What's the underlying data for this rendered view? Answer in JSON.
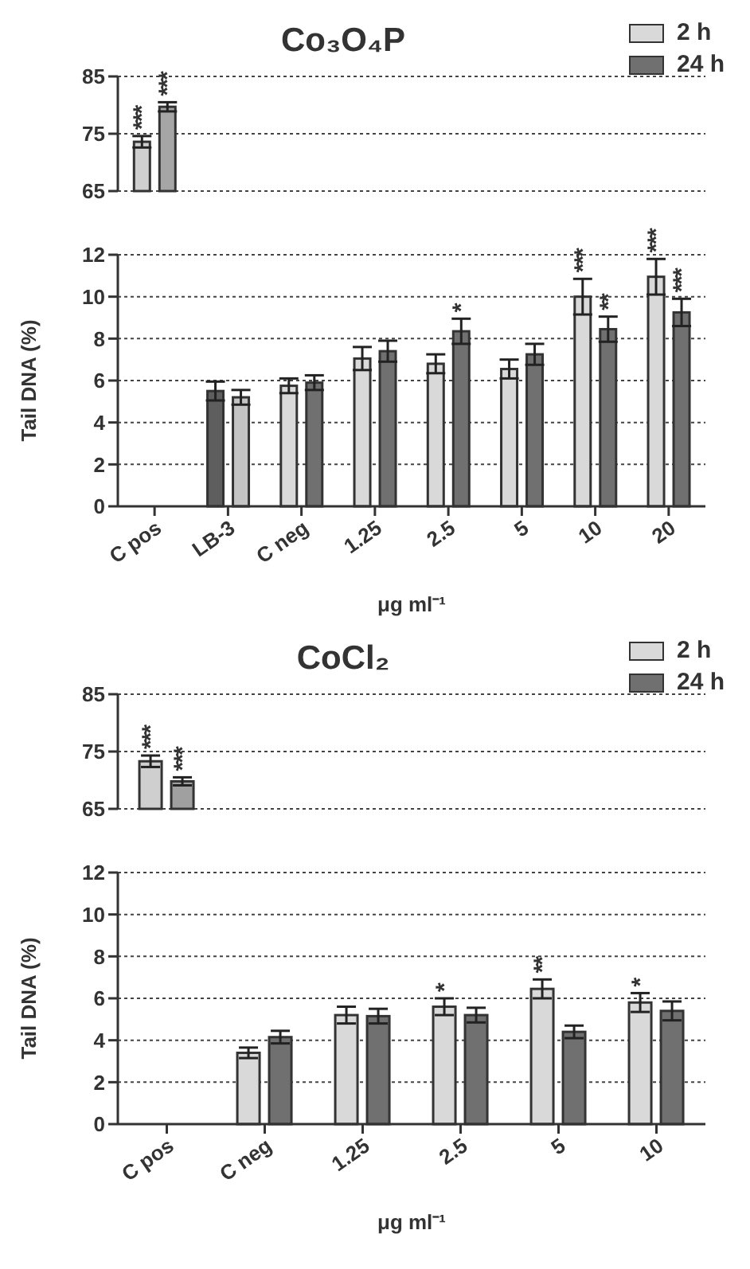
{
  "chart_data": [
    {
      "type": "bar",
      "title": "Co₃O₄P",
      "categories": [
        "C pos",
        "LB-3",
        "C neg",
        "1.25",
        "2.5",
        "5",
        "10",
        "20"
      ],
      "series": [
        {
          "color": "#cfcfcf",
          "values": [
            73.6,
            null,
            null,
            null,
            null,
            null,
            null,
            null
          ],
          "errors": [
            1,
            null,
            null,
            null,
            null,
            null,
            null,
            null
          ]
        },
        {
          "color": "#a6a6a6",
          "values": [
            79.7,
            null,
            null,
            null,
            null,
            null,
            null,
            null
          ],
          "errors": [
            0.8,
            null,
            null,
            null,
            null,
            null,
            null,
            null
          ]
        }
      ],
      "ylim": [
        65,
        85
      ],
      "yticks": [
        65,
        75,
        85
      ],
      "tick_labels": "y",
      "grid": "y",
      "annotations": [
        {
          "text": "***",
          "x": "C pos",
          "y": 73.6
        },
        {
          "text": "***",
          "x": "C pos",
          "y": 79.7
        }
      ]
    },
    {
      "type": "bar",
      "categories": [
        "C pos",
        "LB-3",
        "C neg",
        "1.25",
        "2.5",
        "5",
        "10",
        "20"
      ],
      "series": [
        {
          "name": "2 h",
          "color": "#d9d9d9",
          "colors": [
            null,
            "#5e5e5e",
            "#d9d9d9",
            "#d9d9d9",
            "#d9d9d9",
            "#d9d9d9",
            "#d9d9d9",
            "#d9d9d9"
          ],
          "values": [
            null,
            5.5,
            5.75,
            7.05,
            6.8,
            6.55,
            10,
            10.95
          ],
          "errors": [
            null,
            0.45,
            0.35,
            0.55,
            0.45,
            0.45,
            0.85,
            0.85
          ]
        },
        {
          "name": "24 h",
          "color": "#707070",
          "colors": [
            null,
            "#c4c4c4",
            "#707070",
            "#707070",
            "#707070",
            "#707070",
            "#707070",
            "#707070"
          ],
          "values": [
            null,
            5.2,
            5.9,
            7.4,
            8.35,
            7.25,
            8.45,
            9.25
          ],
          "errors": [
            null,
            0.35,
            0.35,
            0.5,
            0.6,
            0.5,
            0.6,
            0.65
          ]
        }
      ],
      "ylim": [
        0,
        12
      ],
      "yticks": [
        0,
        2,
        4,
        6,
        8,
        10,
        12
      ],
      "grid": "y",
      "legend": "top right",
      "ylabel": "Tail DNA (%)",
      "xlabel": "μg ml⁻¹",
      "annotations": [
        {
          "text": "*",
          "x": "2.5",
          "y": 8.35
        },
        {
          "text": "***",
          "x": "10",
          "y": 10
        },
        {
          "text": "**",
          "x": "10",
          "y": 8.45
        },
        {
          "text": "***",
          "x": "20",
          "y": 10.95
        },
        {
          "text": "***",
          "x": "20",
          "y": 9.25
        }
      ]
    },
    {
      "type": "bar",
      "title": "CoCl₂",
      "categories": [
        "C pos",
        "C neg",
        "1.25",
        "2.5",
        "5",
        "10"
      ],
      "series": [
        {
          "color": "#cfcfcf",
          "values": [
            73.3,
            null,
            null,
            null,
            null,
            null
          ],
          "errors": [
            1,
            null,
            null,
            null,
            null,
            null
          ]
        },
        {
          "color": "#a0a0a0",
          "values": [
            69.8,
            null,
            null,
            null,
            null,
            null
          ],
          "errors": [
            0.7,
            null,
            null,
            null,
            null,
            null
          ]
        }
      ],
      "ylim": [
        65,
        85
      ],
      "yticks": [
        65,
        75,
        85
      ],
      "tick_labels": "y",
      "grid": "y",
      "annotations": [
        {
          "text": "***",
          "x": "C pos",
          "y": 73.3
        },
        {
          "text": "***",
          "x": "C pos",
          "y": 69.8
        }
      ]
    },
    {
      "type": "bar",
      "categories": [
        "C pos",
        "C neg",
        "1.25",
        "2.5",
        "5",
        "10"
      ],
      "series": [
        {
          "name": "2 h",
          "color": "#d9d9d9",
          "values": [
            null,
            3.4,
            5.2,
            5.6,
            6.45,
            5.8
          ],
          "errors": [
            null,
            0.25,
            0.4,
            0.4,
            0.45,
            0.45
          ]
        },
        {
          "name": "24 h",
          "color": "#707070",
          "values": [
            null,
            4.15,
            5.15,
            5.2,
            4.4,
            5.4
          ],
          "errors": [
            null,
            0.3,
            0.35,
            0.35,
            0.3,
            0.45
          ]
        }
      ],
      "ylim": [
        0,
        12
      ],
      "yticks": [
        0,
        2,
        4,
        6,
        8,
        10,
        12
      ],
      "grid": "y",
      "legend": "top right",
      "ylabel": "Tail DNA (%)",
      "xlabel": "μg ml⁻¹",
      "annotations": [
        {
          "text": "*",
          "x": "2.5",
          "y": 5.6
        },
        {
          "text": "**",
          "x": "5",
          "y": 6.45
        },
        {
          "text": "*",
          "x": "10",
          "y": 5.8
        }
      ]
    }
  ]
}
